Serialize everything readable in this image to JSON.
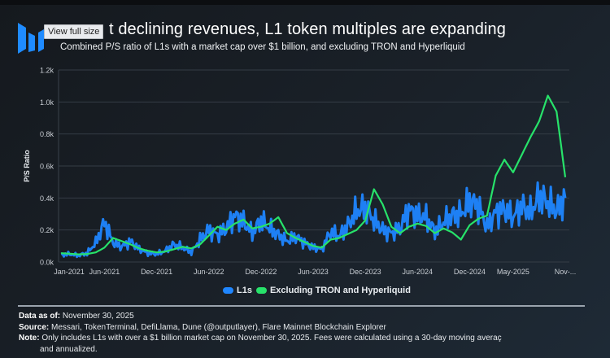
{
  "header": {
    "view_full_size_label": "View full size",
    "title": "Despite declining revenues, L1 token multiples are expanding",
    "title_visible": "t declining revenues, L1 token multiples are expanding",
    "subtitle": "Combined P/S ratio of L1s with a market cap over $1 billion, and excluding TRON and Hyperliquid"
  },
  "colors": {
    "background": "#171c22",
    "l1s": "#1f86ff",
    "excluding": "#27e26a",
    "grid": "#3a424b",
    "logo": "#1f8bff"
  },
  "chart_data": {
    "type": "line",
    "title": "Despite declining revenues, L1 token multiples are expanding",
    "subtitle": "Combined P/S ratio of L1s with a market cap over $1 billion, and excluding TRON and Hyperliquid",
    "xlabel": "",
    "ylabel": "P/S Ratio",
    "ylim": [
      0,
      1200
    ],
    "yticks": [
      0,
      200,
      400,
      600,
      800,
      1000,
      1200
    ],
    "ytick_labels": [
      "0.0k",
      "0.2k",
      "0.4k",
      "0.6k",
      "0.8k",
      "1.0k",
      "1.2k"
    ],
    "xtick_labels": [
      "Jan-2021",
      "Jun-2021",
      "Dec-2021",
      "Jun-2022",
      "Dec-2022",
      "Jun-2023",
      "Dec-2023",
      "Jun-2024",
      "Dec-2024",
      "May-2025",
      "Nov-..."
    ],
    "xtick_index": [
      0,
      5,
      11,
      17,
      23,
      29,
      35,
      41,
      47,
      52,
      58
    ],
    "grid": true,
    "legend_position": "bottom-center",
    "x": [
      "2021-01",
      "2021-02",
      "2021-03",
      "2021-04",
      "2021-05",
      "2021-06",
      "2021-07",
      "2021-08",
      "2021-09",
      "2021-10",
      "2021-11",
      "2021-12",
      "2022-01",
      "2022-02",
      "2022-03",
      "2022-04",
      "2022-05",
      "2022-06",
      "2022-07",
      "2022-08",
      "2022-09",
      "2022-10",
      "2022-11",
      "2022-12",
      "2023-01",
      "2023-02",
      "2023-03",
      "2023-04",
      "2023-05",
      "2023-06",
      "2023-07",
      "2023-08",
      "2023-09",
      "2023-10",
      "2023-11",
      "2023-12",
      "2024-01",
      "2024-02",
      "2024-03",
      "2024-04",
      "2024-05",
      "2024-06",
      "2024-07",
      "2024-08",
      "2024-09",
      "2024-10",
      "2024-11",
      "2024-12",
      "2025-01",
      "2025-02",
      "2025-03",
      "2025-04",
      "2025-05",
      "2025-06",
      "2025-07",
      "2025-08",
      "2025-09",
      "2025-10",
      "2025-11"
    ],
    "series": [
      {
        "name": "L1s",
        "color": "#1f86ff",
        "values": [
          45,
          50,
          40,
          55,
          120,
          250,
          120,
          95,
          130,
          80,
          55,
          50,
          70,
          110,
          90,
          60,
          140,
          200,
          170,
          210,
          290,
          250,
          180,
          260,
          210,
          170,
          130,
          160,
          120,
          90,
          80,
          190,
          160,
          230,
          320,
          340,
          260,
          200,
          180,
          210,
          330,
          290,
          280,
          190,
          250,
          290,
          300,
          380,
          350,
          220,
          310,
          330,
          280,
          350,
          310,
          410,
          370,
          320,
          400
        ]
      },
      {
        "name": "Excluding TRON and Hyperliquid",
        "color": "#27e26a",
        "values": [
          55,
          52,
          48,
          50,
          60,
          90,
          150,
          130,
          110,
          85,
          70,
          60,
          65,
          80,
          95,
          85,
          110,
          165,
          220,
          200,
          240,
          265,
          210,
          220,
          240,
          280,
          180,
          150,
          125,
          100,
          90,
          140,
          150,
          175,
          200,
          260,
          455,
          360,
          220,
          180,
          220,
          240,
          225,
          180,
          210,
          185,
          140,
          230,
          270,
          290,
          540,
          640,
          560,
          670,
          780,
          880,
          1040,
          940,
          530
        ]
      }
    ]
  },
  "legend": [
    {
      "label": "L1s",
      "color": "#1f86ff"
    },
    {
      "label": "Excluding TRON and Hyperliquid",
      "color": "#27e26a"
    }
  ],
  "footer": {
    "data_as_of_label": "Data as of:",
    "data_as_of_value": " November 30, 2025",
    "source_label": "Source:",
    "source_value": " Messari, TokenTerminal, DefiLlama, Dune (@outputlayer), Flare Mainnet Blockchain Explorer",
    "note_label": "Note:",
    "note_value": " Only includes L1s with over a $1 billion market cap on November 30, 2025. Fees were calculated using a 30-day moving averaç",
    "note_cont": "and annualized."
  }
}
